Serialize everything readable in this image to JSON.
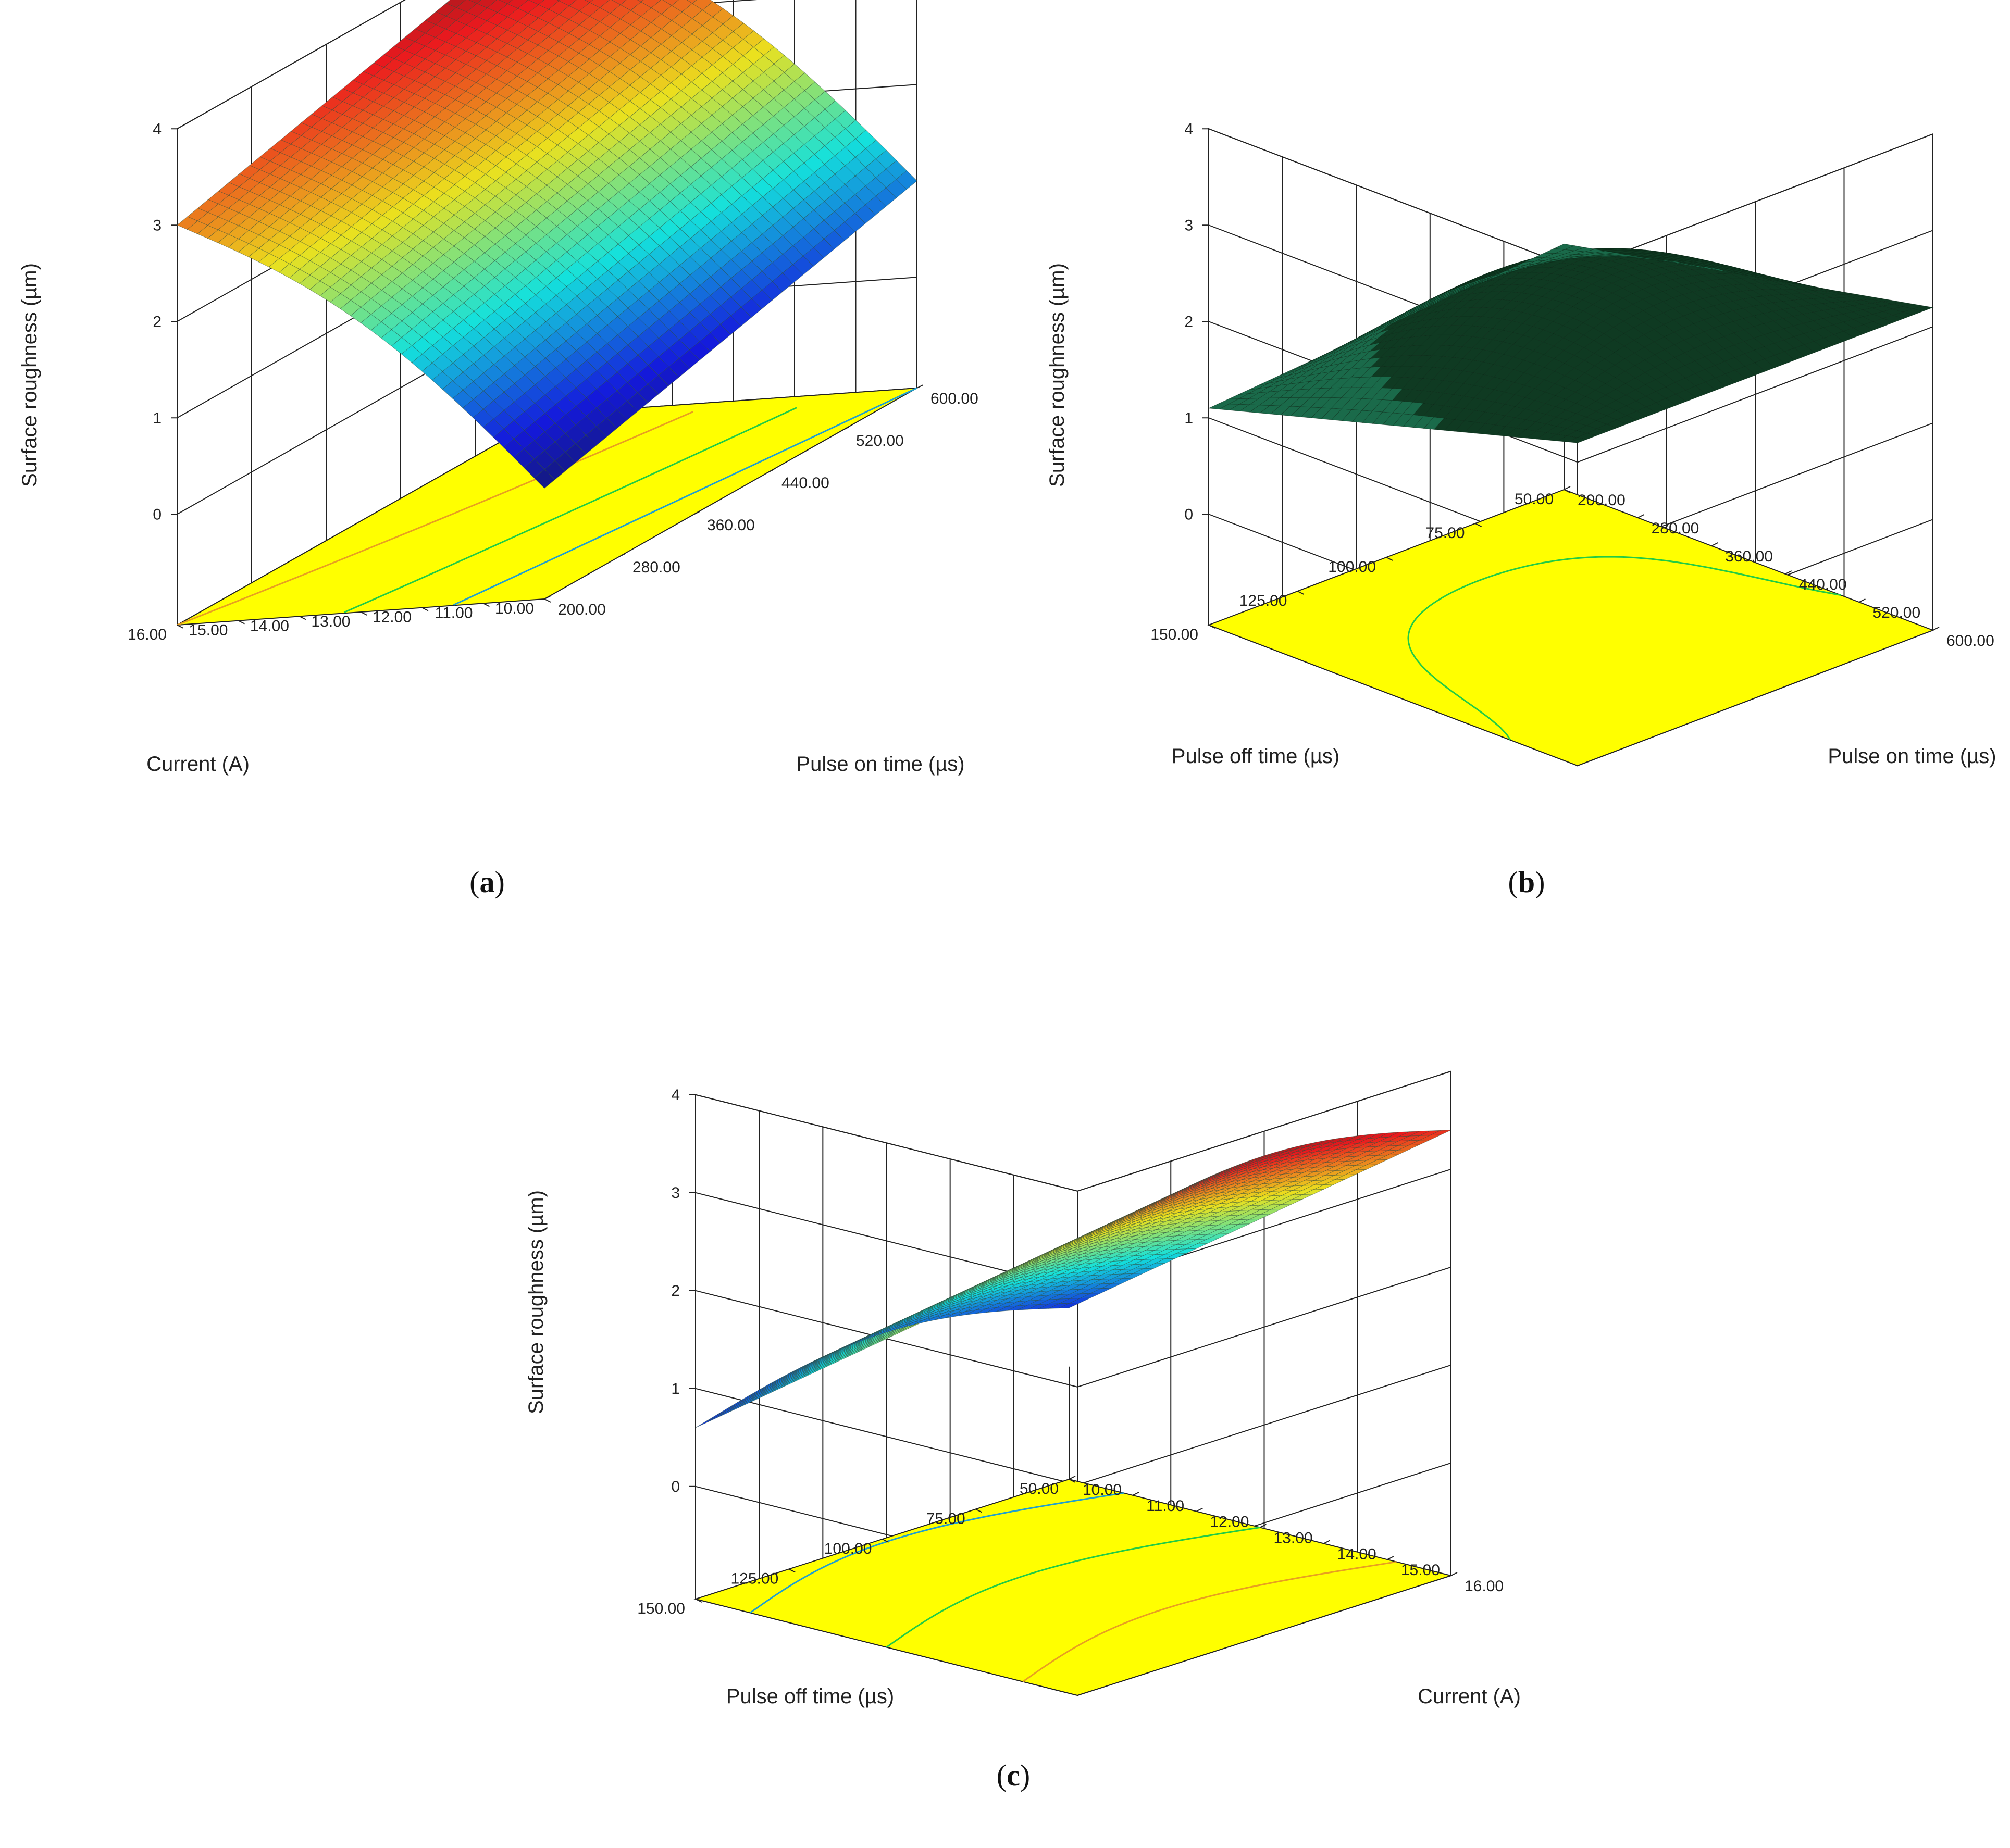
{
  "chart_data": [
    {
      "type": "surface",
      "panel": "a",
      "caption": "a",
      "zlabel": "Surface roughness (µm)",
      "z_ticks": [
        "0",
        "1",
        "2",
        "3",
        "4"
      ],
      "zlim": [
        0,
        4
      ],
      "x_axis": {
        "label": "Current (A)",
        "ticks": [
          "16.00",
          "15.00",
          "14.00",
          "13.00",
          "12.00",
          "11.00",
          "10.00"
        ],
        "range": [
          10,
          16
        ]
      },
      "y_axis": {
        "label": "Pulse on time (µs)",
        "ticks": [
          "200.00",
          "280.00",
          "360.00",
          "440.00",
          "520.00",
          "600.00"
        ],
        "range": [
          200,
          600
        ]
      },
      "corner_values": {
        "x_min_y_min": 0.0,
        "x_max_y_min": 3.0,
        "x_max_y_max": 4.0,
        "x_min_y_max": 1.0
      },
      "floor_color": "#ffff00"
    },
    {
      "type": "surface",
      "panel": "b",
      "caption": "b",
      "zlabel": "Surface roughness (µm)",
      "z_ticks": [
        "0",
        "1",
        "2",
        "3",
        "4"
      ],
      "zlim": [
        0,
        4
      ],
      "x_axis": {
        "label": "Pulse off time (µs)",
        "ticks": [
          "150.00",
          "125.00",
          "100.00",
          "75.00",
          "50.00"
        ],
        "range": [
          50,
          150
        ]
      },
      "y_axis": {
        "label": "Pulse on time (µs)",
        "ticks": [
          "200.00",
          "280.00",
          "360.00",
          "440.00",
          "520.00",
          "600.00"
        ],
        "range": [
          200,
          600
        ]
      },
      "corner_values": {
        "x_min_y_min": 1.4,
        "x_max_y_min": 1.1,
        "x_max_y_max": 2.2,
        "x_min_y_max": 2.2
      },
      "floor_color": "#ffff00"
    },
    {
      "type": "surface",
      "panel": "c",
      "caption": "c",
      "zlabel": "Surface roughness (µm)",
      "z_ticks": [
        "0",
        "1",
        "2",
        "3",
        "4"
      ],
      "zlim": [
        0,
        4
      ],
      "x_axis": {
        "label": "Pulse off time (µs)",
        "ticks": [
          "150.00",
          "125.00",
          "100.00",
          "75.00",
          "50.00"
        ],
        "range": [
          50,
          150
        ]
      },
      "y_axis": {
        "label": "Current (A)",
        "ticks": [
          "10.00",
          "11.00",
          "12.00",
          "13.00",
          "14.00",
          "15.00",
          "16.00"
        ],
        "range": [
          10,
          16
        ]
      },
      "corner_values": {
        "x_min_y_min": 0.6,
        "x_max_y_min": 0.6,
        "x_max_y_max": 3.4,
        "x_min_y_max": 3.4
      },
      "floor_color": "#ffff00"
    }
  ]
}
